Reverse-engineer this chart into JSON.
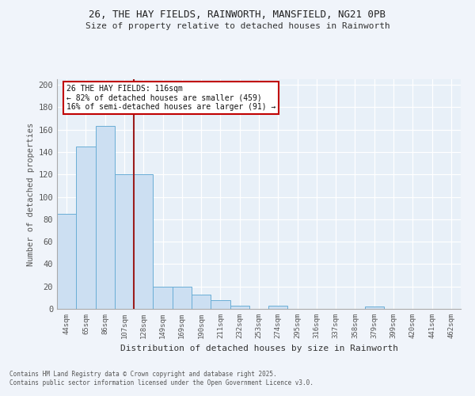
{
  "title_line1": "26, THE HAY FIELDS, RAINWORTH, MANSFIELD, NG21 0PB",
  "title_line2": "Size of property relative to detached houses in Rainworth",
  "xlabel": "Distribution of detached houses by size in Rainworth",
  "ylabel": "Number of detached properties",
  "bar_labels": [
    "44sqm",
    "65sqm",
    "86sqm",
    "107sqm",
    "128sqm",
    "149sqm",
    "169sqm",
    "190sqm",
    "211sqm",
    "232sqm",
    "253sqm",
    "274sqm",
    "295sqm",
    "316sqm",
    "337sqm",
    "358sqm",
    "379sqm",
    "399sqm",
    "420sqm",
    "441sqm",
    "462sqm"
  ],
  "bar_values": [
    85,
    145,
    163,
    120,
    120,
    20,
    20,
    13,
    8,
    3,
    0,
    3,
    0,
    0,
    0,
    0,
    2,
    0,
    0,
    0,
    0
  ],
  "bar_color": "#ccdff2",
  "bar_edge_color": "#6aaed6",
  "vline_color": "#9b1c1c",
  "annotation_text": "26 THE HAY FIELDS: 116sqm\n← 82% of detached houses are smaller (459)\n16% of semi-detached houses are larger (91) →",
  "annotation_box_color": "#ffffff",
  "annotation_box_edge": "#c00000",
  "ylim": [
    0,
    205
  ],
  "yticks": [
    0,
    20,
    40,
    60,
    80,
    100,
    120,
    140,
    160,
    180,
    200
  ],
  "footer_line1": "Contains HM Land Registry data © Crown copyright and database right 2025.",
  "footer_line2": "Contains public sector information licensed under the Open Government Licence v3.0.",
  "bg_color": "#e8f0f8",
  "fig_bg_color": "#f0f4fa"
}
